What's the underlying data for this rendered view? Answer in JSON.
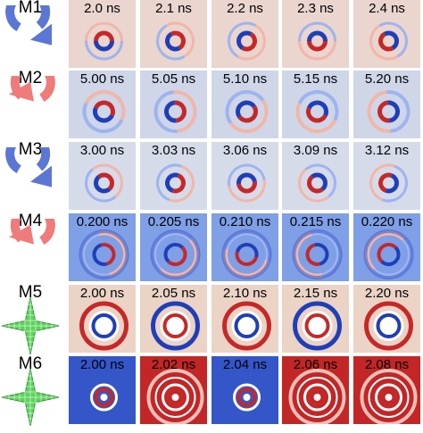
{
  "rows": [
    {
      "label": "M1",
      "marker_icon": "blue-counterclockwise-arrow-icon",
      "marker_color": "#5c76d6",
      "background": "#ead5cf",
      "time_labels": [
        "2.0 ns",
        "2.1 ns",
        "2.2 ns",
        "2.3 ns",
        "2.4 ns"
      ]
    },
    {
      "label": "M2",
      "marker_icon": "red-clockwise-arrow-icon",
      "marker_color": "#ef7b7b",
      "background": "#cfd6e8",
      "time_labels": [
        "5.00 ns",
        "5.05 ns",
        "5.10 ns",
        "5.15 ns",
        "5.20 ns"
      ]
    },
    {
      "label": "M3",
      "marker_icon": "blue-counterclockwise-arrow-icon",
      "marker_color": "#5c76d6",
      "background": "#d6dbea",
      "time_labels": [
        "3.00 ns",
        "3.03 ns",
        "3.06 ns",
        "3.09 ns",
        "3.12 ns"
      ]
    },
    {
      "label": "M4",
      "marker_icon": "red-clockwise-arrow-icon",
      "marker_color": "#ef7b7b",
      "background": "#7f9fe6",
      "time_labels": [
        "0.200 ns",
        "0.205 ns",
        "0.210 ns",
        "0.215 ns",
        "0.220 ns"
      ]
    },
    {
      "label": "M5",
      "marker_icon": "green-four-point-star-icon",
      "marker_color": "#5ed35e",
      "background": "#ebd3c6",
      "time_labels": [
        "2.00 ns",
        "2.05 ns",
        "2.10 ns",
        "2.15 ns",
        "2.20 ns"
      ]
    },
    {
      "label": "M6",
      "marker_icon": "green-four-point-star-icon",
      "marker_color": "#5ed35e",
      "background": "#3456c9",
      "time_labels": [
        "2.00 ns",
        "2.02 ns",
        "2.04 ns",
        "2.06 ns",
        "2.08 ns"
      ]
    }
  ]
}
